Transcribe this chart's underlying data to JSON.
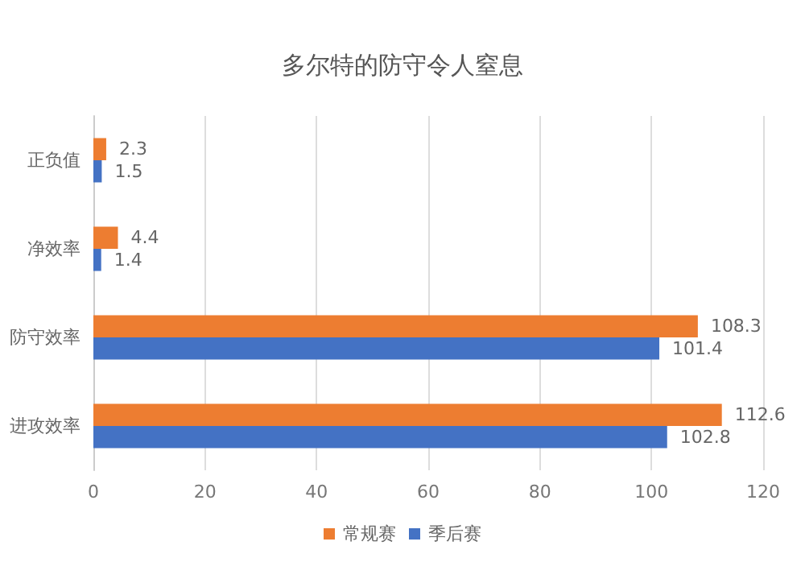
{
  "chart_data": {
    "type": "bar",
    "orientation": "horizontal",
    "title": "多尔特的防守令人窒息",
    "categories": [
      "正负值",
      "净效率",
      "防守效率",
      "进攻效率"
    ],
    "series": [
      {
        "name": "常规赛",
        "color": "#ed7d31",
        "values": [
          2.3,
          4.4,
          108.3,
          112.6
        ]
      },
      {
        "name": "季后赛",
        "color": "#4472c4",
        "values": [
          1.5,
          1.4,
          101.4,
          102.8
        ]
      }
    ],
    "xlim": [
      0,
      120
    ],
    "xticks": [
      0,
      20,
      40,
      60,
      80,
      100,
      120
    ],
    "grid": "x",
    "legend": "bottom",
    "data_labels": true
  }
}
